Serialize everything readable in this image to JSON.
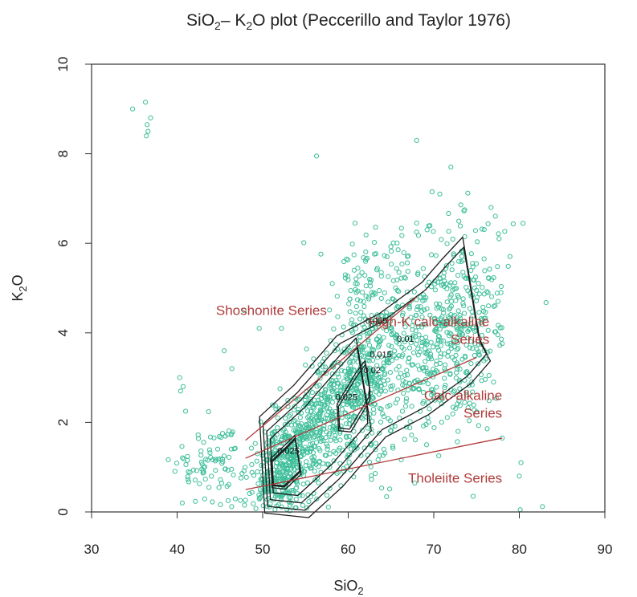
{
  "chart_data": {
    "type": "scatter",
    "title": {
      "prefix": "SiO",
      "sub1": "2",
      "mid": "– K",
      "sub2": "2",
      "suffix": "O plot (Peccerillo and Taylor 1976)"
    },
    "xlabel": {
      "base": "SiO",
      "sub": "2"
    },
    "ylabel": {
      "base": "K",
      "sub": "2",
      "tail": "O"
    },
    "xlim": [
      30,
      90
    ],
    "ylim": [
      0,
      10
    ],
    "x_ticks": [
      "30",
      "40",
      "50",
      "60",
      "70",
      "80",
      "90"
    ],
    "y_ticks": [
      "0",
      "2",
      "4",
      "6",
      "8",
      "10"
    ],
    "grid": false,
    "colors": {
      "points": "#3fbf9a",
      "contours": "#1c1c1c",
      "divider_lines": "#b03a3a",
      "series_labels": "#b03a3a"
    },
    "divider_lines": [
      {
        "name": "shoshonite-boundary",
        "x": [
          48,
          68
        ],
        "y": [
          1.6,
          4.8
        ]
      },
      {
        "name": "high-k-boundary",
        "x": [
          48,
          75
        ],
        "y": [
          1.2,
          3.45
        ]
      },
      {
        "name": "calc-alkaline-boundary",
        "x": [
          48,
          78
        ],
        "y": [
          0.5,
          1.65
        ]
      }
    ],
    "series_labels": [
      {
        "lines": [
          "Shoshonite Series"
        ],
        "x": 57.5,
        "y": 4.4,
        "anchor": "end"
      },
      {
        "lines": [
          "High-K calc-alkaline",
          "Series"
        ],
        "x": 76.5,
        "y": 4.15,
        "anchor": "end"
      },
      {
        "lines": [
          "Calc-alkaline",
          "Series"
        ],
        "x": 78,
        "y": 2.5,
        "anchor": "end"
      },
      {
        "lines": [
          "Tholeiite Series"
        ],
        "x": 78,
        "y": 0.65,
        "anchor": "end"
      }
    ],
    "contour_levels": [
      "0.005",
      "0.01",
      "0.015",
      "0.02",
      "0.025"
    ],
    "contour_label_positions": [
      {
        "level": "0.005",
        "x": 63.3,
        "y": 4.2
      },
      {
        "level": "0.01",
        "x": 66.7,
        "y": 3.8
      },
      {
        "level": "0.015",
        "x": 63.8,
        "y": 3.45
      },
      {
        "level": "0.02",
        "x": 62.8,
        "y": 3.1
      },
      {
        "level": "0.025",
        "x": 59.8,
        "y": 2.5
      },
      {
        "level": "0.025",
        "x": 53.0,
        "y": 1.3
      }
    ],
    "outlier_points": [
      [
        34.8,
        9.0
      ],
      [
        36.3,
        9.15
      ],
      [
        36.5,
        8.65
      ],
      [
        36.6,
        8.5
      ],
      [
        36.9,
        8.8
      ],
      [
        36.4,
        8.4
      ],
      [
        56.3,
        7.95
      ],
      [
        68.0,
        8.3
      ],
      [
        72.0,
        7.7
      ],
      [
        69.8,
        7.15
      ],
      [
        70.7,
        7.1
      ],
      [
        76.7,
        6.8
      ],
      [
        60.8,
        6.45
      ],
      [
        68.0,
        6.45
      ],
      [
        40.3,
        3.0
      ],
      [
        40.4,
        2.7
      ],
      [
        40.7,
        2.8
      ],
      [
        41.0,
        2.25
      ],
      [
        80.2,
        1.1
      ],
      [
        80.0,
        0.8
      ],
      [
        82.7,
        0.12
      ],
      [
        80.1,
        0.05
      ],
      [
        78.0,
        1.65
      ],
      [
        74.6,
        0.35
      ],
      [
        40.6,
        0.2
      ],
      [
        45.5,
        3.6
      ],
      [
        46.4,
        3.2
      ],
      [
        47.8,
        4.5
      ],
      [
        49.6,
        4.1
      ],
      [
        52.2,
        4.1
      ]
    ],
    "clusters": [
      {
        "cx": 52,
        "cy": 1.0,
        "sx": 2.2,
        "sy": 0.65,
        "rho": 0.5,
        "n": 330
      },
      {
        "cx": 56,
        "cy": 1.9,
        "sx": 2.8,
        "sy": 0.9,
        "rho": 0.65,
        "n": 320
      },
      {
        "cx": 61.5,
        "cy": 2.8,
        "sx": 2.7,
        "sy": 1.0,
        "rho": 0.5,
        "n": 420
      },
      {
        "cx": 72.5,
        "cy": 4.2,
        "sx": 2.8,
        "sy": 1.1,
        "rho": 0.3,
        "n": 360
      },
      {
        "cx": 67,
        "cy": 3.4,
        "sx": 4.0,
        "sy": 1.2,
        "rho": 0.4,
        "n": 220
      },
      {
        "cx": 44,
        "cy": 1.0,
        "sx": 2.0,
        "sy": 0.45,
        "rho": 0.1,
        "n": 90
      },
      {
        "cx": 63,
        "cy": 5.3,
        "sx": 3.2,
        "sy": 0.6,
        "rho": 0.2,
        "n": 80
      }
    ]
  }
}
